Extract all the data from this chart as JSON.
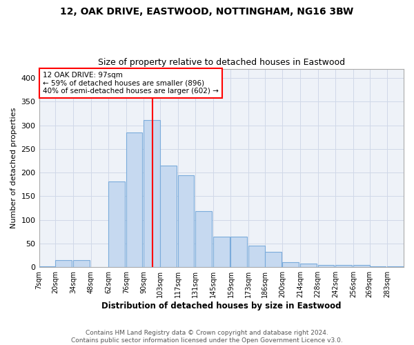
{
  "title1": "12, OAK DRIVE, EASTWOOD, NOTTINGHAM, NG16 3BW",
  "title2": "Size of property relative to detached houses in Eastwood",
  "xlabel": "Distribution of detached houses by size in Eastwood",
  "ylabel": "Number of detached properties",
  "annotation_line1": "12 OAK DRIVE: 97sqm",
  "annotation_line2": "← 59% of detached houses are smaller (896)",
  "annotation_line3": "40% of semi-detached houses are larger (602) →",
  "bin_labels": [
    "7sqm",
    "20sqm",
    "34sqm",
    "48sqm",
    "62sqm",
    "76sqm",
    "90sqm",
    "103sqm",
    "117sqm",
    "131sqm",
    "145sqm",
    "159sqm",
    "173sqm",
    "186sqm",
    "200sqm",
    "214sqm",
    "228sqm",
    "242sqm",
    "256sqm",
    "269sqm",
    "283sqm"
  ],
  "bar_values": [
    2,
    15,
    15,
    0,
    182,
    285,
    312,
    215,
    195,
    118,
    65,
    65,
    45,
    32,
    11,
    7,
    5,
    4,
    5,
    2,
    2
  ],
  "bar_left_edges": [
    7,
    20,
    34,
    48,
    62,
    76,
    90,
    103,
    117,
    131,
    145,
    159,
    173,
    186,
    200,
    214,
    228,
    242,
    256,
    269,
    283
  ],
  "bin_width": 13,
  "vline_x": 97,
  "bar_color": "#c6d9f0",
  "bar_edgecolor": "#7aabdb",
  "vline_color": "red",
  "annotation_box_color": "red",
  "annotation_fill": "white",
  "footer1": "Contains HM Land Registry data © Crown copyright and database right 2024.",
  "footer2": "Contains public sector information licensed under the Open Government Licence v3.0.",
  "ylim": [
    0,
    420
  ],
  "xlim": [
    7,
    296
  ],
  "yticks": [
    0,
    50,
    100,
    150,
    200,
    250,
    300,
    350,
    400
  ],
  "grid_color": "#d0d8e8",
  "bg_color": "#eef2f8"
}
